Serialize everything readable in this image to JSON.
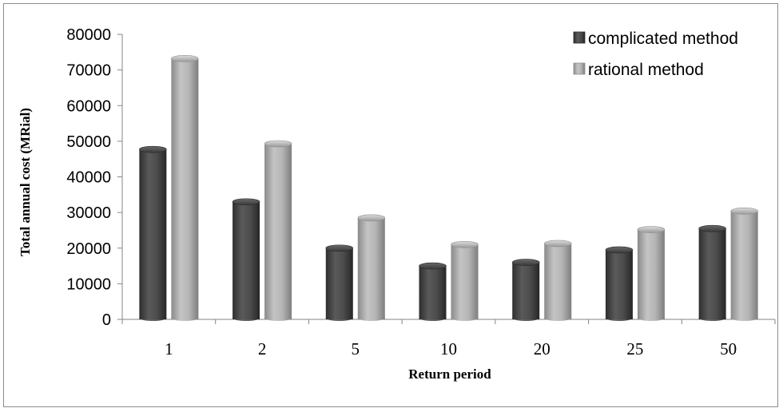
{
  "chart_data": {
    "type": "bar",
    "bar_style": "3d-cylinder",
    "categories": [
      "1",
      "2",
      "5",
      "10",
      "20",
      "25",
      "50"
    ],
    "series": [
      {
        "name": "complicated method",
        "color": "#4a4a4a",
        "values": [
          47700,
          33000,
          20000,
          15000,
          16000,
          19500,
          25500
        ]
      },
      {
        "name": "rational method",
        "color": "#a9a9a9",
        "values": [
          73200,
          49300,
          28500,
          21000,
          21300,
          25200,
          30400
        ]
      }
    ],
    "xlabel": "Return period",
    "ylabel": "Total annual cost (MRial)",
    "ylim": [
      0,
      80000
    ],
    "yticks": [
      0,
      10000,
      20000,
      30000,
      40000,
      50000,
      60000,
      70000,
      80000
    ],
    "grid": false,
    "legend_position": "top-right"
  }
}
